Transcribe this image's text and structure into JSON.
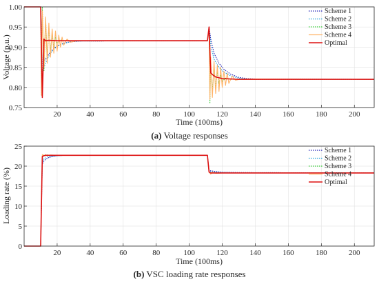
{
  "chart_data": [
    {
      "type": "line",
      "caption_label": "(a)",
      "caption_text": "Voltage responses",
      "xlabel": "Time (100ms)",
      "ylabel": "Voltage (p.u.)",
      "xlim": [
        0,
        212
      ],
      "ylim": [
        0.75,
        1.0
      ],
      "xticks": [
        "20",
        "40",
        "60",
        "80",
        "100",
        "120",
        "140",
        "160",
        "180",
        "200"
      ],
      "yticks": [
        "0.75",
        "0.80",
        "0.85",
        "0.90",
        "0.95",
        "1.00"
      ],
      "grid": true,
      "legend_position": "top-right",
      "series": [
        {
          "name": "Scheme 1",
          "color": "#1f1fb4",
          "style": "dotted",
          "x": [
            0,
            10,
            11,
            12,
            14,
            16,
            18,
            20,
            24,
            28,
            35,
            111,
            112,
            113,
            115,
            118,
            121,
            125,
            130,
            135,
            140,
            212
          ],
          "y": [
            1.0,
            1.0,
            0.86,
            0.865,
            0.877,
            0.888,
            0.897,
            0.903,
            0.91,
            0.913,
            0.915,
            0.916,
            0.95,
            0.92,
            0.885,
            0.86,
            0.845,
            0.833,
            0.825,
            0.822,
            0.821,
            0.82
          ]
        },
        {
          "name": "Scheme 2",
          "color": "#1fa0d8",
          "style": "dotted",
          "x": [
            0,
            10,
            11,
            12,
            14,
            16,
            18,
            20,
            24,
            28,
            35,
            111,
            112,
            113,
            115,
            118,
            121,
            125,
            130,
            135,
            140,
            212
          ],
          "y": [
            1.0,
            1.0,
            0.84,
            0.85,
            0.87,
            0.885,
            0.895,
            0.902,
            0.909,
            0.913,
            0.915,
            0.916,
            0.945,
            0.905,
            0.87,
            0.85,
            0.838,
            0.829,
            0.823,
            0.821,
            0.82,
            0.82
          ]
        },
        {
          "name": "Scheme 3",
          "color": "#33cc33",
          "style": "dotted",
          "x": [
            0,
            10,
            10.5,
            11,
            12,
            13,
            14,
            15,
            16,
            17,
            18,
            19,
            20,
            22,
            25,
            30,
            111,
            112,
            112.5,
            113,
            114,
            115,
            116,
            117,
            118,
            119,
            120,
            122,
            125,
            130,
            212
          ],
          "y": [
            1.0,
            1.0,
            0.78,
            1.0,
            0.84,
            0.97,
            0.87,
            0.95,
            0.89,
            0.93,
            0.9,
            0.925,
            0.91,
            0.918,
            0.915,
            0.916,
            0.916,
            0.945,
            0.76,
            0.86,
            0.79,
            0.85,
            0.8,
            0.84,
            0.81,
            0.83,
            0.815,
            0.823,
            0.82,
            0.82,
            0.82
          ]
        },
        {
          "name": "Scheme 4",
          "color": "#ffb366",
          "style": "solid",
          "x": [
            0,
            10,
            10.5,
            11,
            12,
            13,
            14,
            15,
            16,
            17,
            18,
            19,
            20,
            21,
            22,
            23,
            24,
            26,
            28,
            32,
            111,
            112,
            112.5,
            113,
            114,
            115,
            116,
            117,
            118,
            119,
            120,
            121,
            122,
            123,
            124,
            126,
            128,
            132,
            212
          ],
          "y": [
            1.0,
            1.0,
            0.78,
            0.99,
            0.85,
            0.975,
            0.86,
            0.96,
            0.875,
            0.945,
            0.885,
            0.94,
            0.89,
            0.93,
            0.9,
            0.925,
            0.905,
            0.92,
            0.912,
            0.916,
            0.916,
            0.94,
            0.77,
            0.875,
            0.775,
            0.865,
            0.785,
            0.855,
            0.79,
            0.85,
            0.8,
            0.84,
            0.805,
            0.835,
            0.81,
            0.828,
            0.818,
            0.821,
            0.82
          ]
        },
        {
          "name": "Optimal",
          "color": "#dd1111",
          "style": "solid",
          "x": [
            0,
            10,
            11,
            12,
            13,
            15,
            20,
            30,
            111,
            112,
            113,
            114,
            116,
            120,
            130,
            212
          ],
          "y": [
            1.0,
            1.0,
            0.775,
            0.92,
            0.916,
            0.917,
            0.916,
            0.916,
            0.916,
            0.95,
            0.836,
            0.832,
            0.826,
            0.822,
            0.82,
            0.82
          ]
        }
      ]
    },
    {
      "type": "line",
      "caption_label": "(b)",
      "caption_text": "VSC loading rate responses",
      "xlabel": "Time (100ms)",
      "ylabel": "Loading rate (%)",
      "xlim": [
        0,
        212
      ],
      "ylim": [
        0,
        25
      ],
      "xticks": [
        "20",
        "40",
        "60",
        "80",
        "100",
        "120",
        "140",
        "160",
        "180",
        "200"
      ],
      "yticks": [
        "0",
        "5",
        "10",
        "15",
        "20",
        "25"
      ],
      "grid": true,
      "legend_position": "top-right",
      "series": [
        {
          "name": "Scheme 1",
          "color": "#1f1fb4",
          "style": "dotted",
          "x": [
            0,
            10,
            11,
            12,
            14,
            17,
            20,
            25,
            111,
            112,
            115,
            120,
            130,
            212
          ],
          "y": [
            0,
            0,
            20.5,
            21.3,
            22.0,
            22.4,
            22.6,
            22.7,
            22.7,
            18.9,
            18.7,
            18.5,
            18.4,
            18.3
          ]
        },
        {
          "name": "Scheme 2",
          "color": "#1fa0d8",
          "style": "dotted",
          "x": [
            0,
            10,
            11,
            12,
            14,
            17,
            20,
            25,
            111,
            112,
            115,
            120,
            130,
            212
          ],
          "y": [
            0,
            0,
            21.0,
            21.8,
            22.3,
            22.5,
            22.6,
            22.7,
            22.7,
            18.7,
            18.5,
            18.4,
            18.3,
            18.3
          ]
        },
        {
          "name": "Scheme 3",
          "color": "#33cc33",
          "style": "dotted",
          "x": [
            0,
            10,
            11,
            12,
            13,
            14,
            16,
            20,
            111,
            112,
            113,
            114,
            116,
            120,
            212
          ],
          "y": [
            0,
            0,
            22.6,
            22.8,
            22.6,
            22.8,
            22.7,
            22.7,
            22.7,
            18.6,
            18.2,
            18.5,
            18.3,
            18.3,
            18.3
          ]
        },
        {
          "name": "Scheme 4",
          "color": "#ffb366",
          "style": "solid",
          "x": [
            0,
            10,
            11,
            12,
            13,
            14,
            16,
            20,
            111,
            112,
            113,
            114,
            116,
            120,
            212
          ],
          "y": [
            0,
            0,
            22.9,
            22.6,
            22.9,
            22.6,
            22.8,
            22.7,
            22.7,
            18.5,
            18.0,
            18.5,
            18.2,
            18.3,
            18.3
          ]
        },
        {
          "name": "Optimal",
          "color": "#dd1111",
          "style": "solid",
          "x": [
            0,
            10,
            11,
            12,
            13,
            20,
            111,
            112,
            113,
            120,
            212
          ],
          "y": [
            0,
            0,
            22.4,
            22.6,
            22.7,
            22.7,
            22.7,
            18.5,
            18.3,
            18.3,
            18.3
          ]
        }
      ]
    }
  ]
}
